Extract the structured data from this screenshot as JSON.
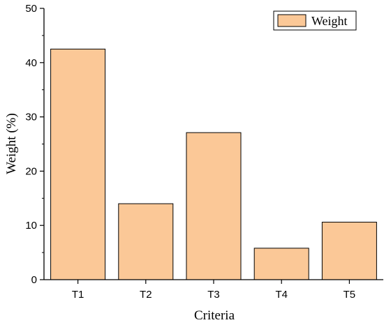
{
  "chart_data": {
    "type": "bar",
    "categories": [
      "T1",
      "T2",
      "T3",
      "T4",
      "T5"
    ],
    "series": [
      {
        "name": "Weight",
        "values": [
          42.5,
          14.0,
          27.1,
          5.8,
          10.6
        ]
      }
    ],
    "xlabel": "Criteria",
    "ylabel": "Weight (%)",
    "ylim": [
      0,
      50
    ],
    "yticks": [
      0,
      10,
      20,
      30,
      40,
      50
    ],
    "grid": false,
    "legend": {
      "position": "top-right",
      "entries": [
        "Weight"
      ]
    },
    "colors": {
      "bar_fill": "#fbc897",
      "bar_stroke": "#000000",
      "axis": "#000000"
    }
  }
}
